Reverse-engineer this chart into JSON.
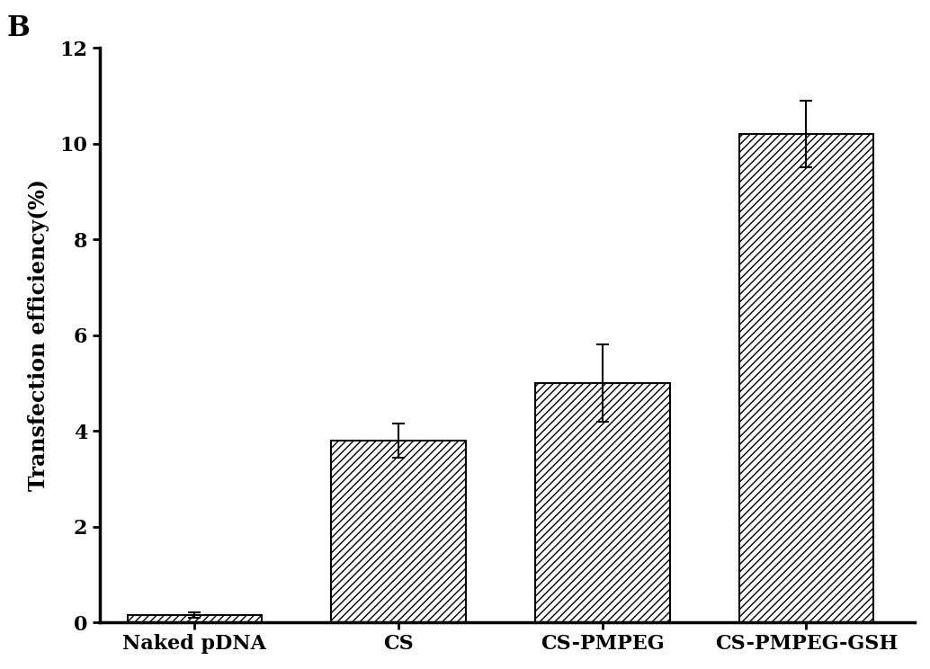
{
  "categories": [
    "Naked pDNA",
    "CS",
    "CS-PMPEG",
    "CS-PMPEG-GSH"
  ],
  "values": [
    0.15,
    3.8,
    5.0,
    10.2
  ],
  "errors": [
    0.05,
    0.35,
    0.8,
    0.7
  ],
  "ylim": [
    0,
    12
  ],
  "yticks": [
    0,
    2,
    4,
    6,
    8,
    10,
    12
  ],
  "ylabel": "Transfection efficiency(%)",
  "panel_label": "B",
  "bar_color": "white",
  "bar_edgecolor": "#000000",
  "hatch": "////",
  "background_color": "#ffffff",
  "title_fontsize": 22,
  "label_fontsize": 17,
  "tick_fontsize": 16,
  "bar_width": 0.45,
  "figsize": [
    10.34,
    7.44
  ],
  "dpi": 100
}
